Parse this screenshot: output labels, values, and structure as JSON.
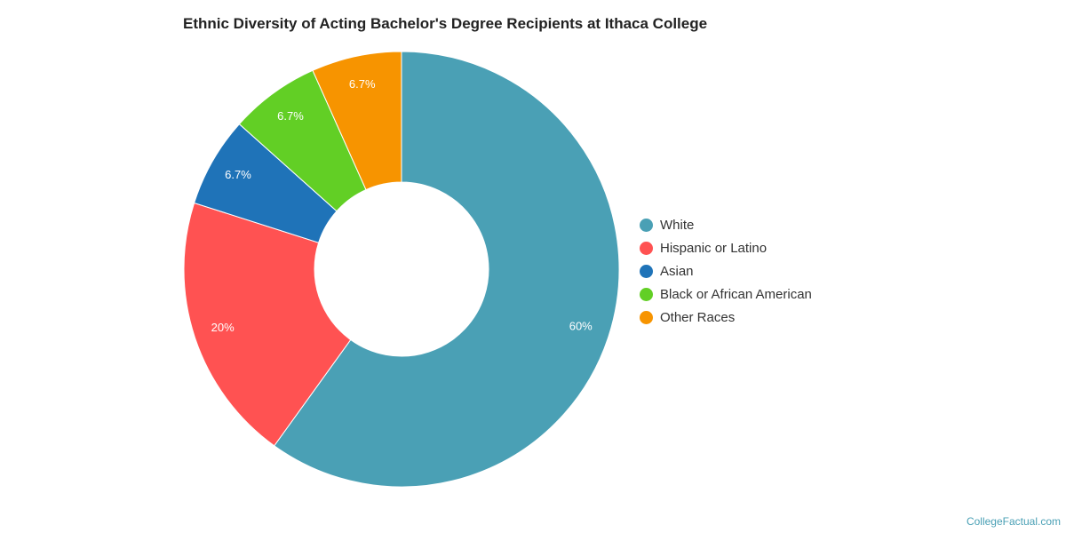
{
  "chart_data": {
    "type": "pie",
    "title": "Ethnic Diversity of Acting Bachelor's Degree Recipients at Ithaca College",
    "categories": [
      "White",
      "Hispanic or Latino",
      "Asian",
      "Black or African American",
      "Other Races"
    ],
    "values": [
      60,
      20,
      6.7,
      6.7,
      6.7
    ],
    "labels": [
      "60%",
      "20%",
      "6.7%",
      "6.7%",
      "6.7%"
    ],
    "colors": [
      "#4aa0b5",
      "#ff5252",
      "#1f73b8",
      "#62cf25",
      "#f79400"
    ],
    "donut": true,
    "legend_position": "right"
  },
  "credit": "CollegeFactual.com"
}
